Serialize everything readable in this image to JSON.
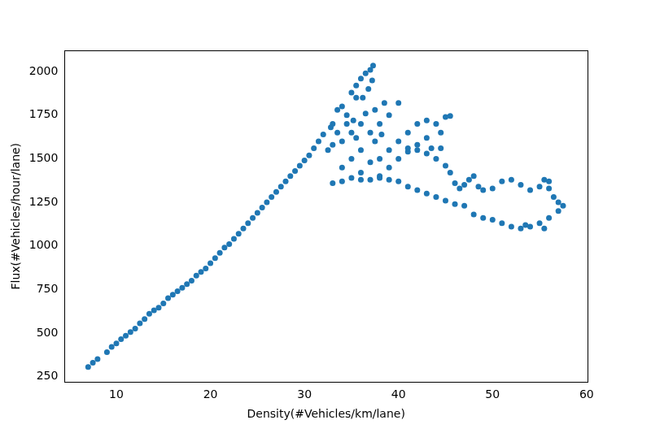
{
  "chart_data": {
    "type": "scatter",
    "x_label": "Density(#Vehicles/km/lane)",
    "y_label": "Flux(#Vehicles/hour/lane)",
    "color": "#1f77b4",
    "marker": "circle",
    "grid": false,
    "xlim": [
      4.5,
      60.1
    ],
    "ylim": [
      218,
      2122
    ],
    "xticks": [
      10,
      20,
      30,
      40,
      50,
      60
    ],
    "yticks": [
      250,
      500,
      750,
      1000,
      1250,
      1500,
      1750,
      2000
    ],
    "x": [
      7,
      7.5,
      8,
      9,
      9.5,
      10,
      10.5,
      11,
      11.5,
      12,
      12.5,
      13,
      13.5,
      14,
      14.5,
      15,
      15.5,
      16,
      16.5,
      17,
      17.5,
      18,
      18.5,
      19,
      19.5,
      20,
      20.5,
      21,
      21.5,
      22,
      22.5,
      23,
      23.5,
      24,
      24.5,
      25,
      25.5,
      26,
      26.5,
      27,
      27.5,
      28,
      28.5,
      29,
      29.5,
      30,
      30.5,
      31,
      31.5,
      32,
      33,
      34,
      35,
      35.5,
      36,
      36.5,
      37,
      37.3,
      37.2,
      36.8,
      35.5,
      34.5,
      33.5,
      33,
      32.5,
      34,
      35,
      36,
      37,
      38,
      39,
      40,
      38.5,
      37.5,
      36,
      35,
      34,
      36,
      37,
      38,
      39,
      40,
      41,
      42,
      43,
      44,
      45,
      45.5,
      44.5,
      43,
      42,
      41,
      40,
      39,
      38,
      34.5,
      35.5,
      36.5,
      37.5,
      33.5,
      32.8,
      36.2,
      35.2,
      38.2,
      33,
      34,
      35,
      36,
      37,
      38,
      39,
      40,
      41,
      42,
      43,
      44,
      45,
      46,
      47,
      48,
      49,
      50,
      51,
      52,
      53,
      54,
      55,
      56,
      57,
      57.5,
      57,
      56.5,
      56,
      56,
      55.5,
      55,
      54,
      53,
      52,
      51,
      50,
      49,
      48.5,
      48,
      47.5,
      47,
      46.5,
      46,
      45.5,
      45,
      44,
      43,
      42,
      41,
      43.5,
      44.5,
      53.5,
      55.5
    ],
    "values": [
      305,
      330,
      350,
      390,
      420,
      440,
      465,
      485,
      505,
      525,
      555,
      580,
      610,
      630,
      645,
      670,
      700,
      720,
      740,
      760,
      780,
      800,
      830,
      850,
      870,
      900,
      930,
      960,
      990,
      1010,
      1040,
      1070,
      1100,
      1130,
      1160,
      1190,
      1220,
      1250,
      1280,
      1310,
      1340,
      1370,
      1400,
      1430,
      1460,
      1490,
      1520,
      1560,
      1600,
      1640,
      1700,
      1800,
      1880,
      1920,
      1960,
      1990,
      2010,
      2035,
      1950,
      1900,
      1850,
      1750,
      1650,
      1580,
      1550,
      1600,
      1650,
      1700,
      1650,
      1700,
      1750,
      1820,
      1820,
      1780,
      1550,
      1500,
      1450,
      1420,
      1480,
      1500,
      1550,
      1600,
      1650,
      1700,
      1720,
      1700,
      1740,
      1745,
      1650,
      1620,
      1580,
      1560,
      1500,
      1450,
      1400,
      1700,
      1620,
      1760,
      1600,
      1780,
      1680,
      1850,
      1720,
      1640,
      1360,
      1370,
      1390,
      1380,
      1380,
      1390,
      1380,
      1370,
      1340,
      1320,
      1300,
      1280,
      1260,
      1240,
      1230,
      1180,
      1160,
      1150,
      1130,
      1110,
      1100,
      1110,
      1130,
      1160,
      1200,
      1230,
      1250,
      1280,
      1330,
      1370,
      1380,
      1340,
      1320,
      1350,
      1380,
      1370,
      1330,
      1320,
      1340,
      1400,
      1380,
      1350,
      1330,
      1360,
      1420,
      1460,
      1500,
      1530,
      1550,
      1540,
      1560,
      1560,
      1120,
      1100
    ]
  }
}
